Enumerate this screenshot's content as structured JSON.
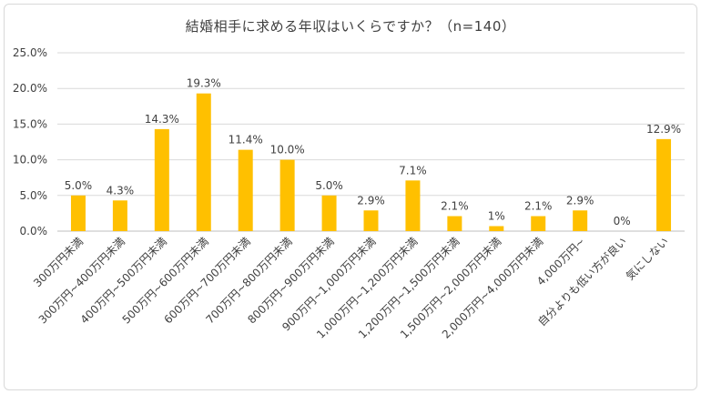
{
  "chart_data": {
    "type": "bar",
    "title": "結婚相手に求める年収はいくらですか？（n=140）",
    "categories": [
      "300万円未満",
      "300万円~400万円未満",
      "400万円~500万円未満",
      "500万円~600万円未満",
      "600万円~700万円未満",
      "700万円~800万円未満",
      "800万円~900万円未満",
      "900万円~1,000万円未満",
      "1,000万円~1,200万円未満",
      "1,200万円~1,500万円未満",
      "1,500万円~2,000万円未満",
      "2,000万円~4,000万円未満",
      "4,000万円~",
      "自分よりも低い方が良い",
      "気にしない"
    ],
    "values": [
      5.0,
      4.3,
      14.3,
      19.3,
      11.4,
      10.0,
      5.0,
      2.9,
      7.1,
      2.1,
      0.7,
      2.1,
      2.9,
      0,
      12.9
    ],
    "data_labels": [
      "5.0%",
      "4.3%",
      "14.3%",
      "19.3%",
      "11.4%",
      "10.0%",
      "5.0%",
      "2.9%",
      "7.1%",
      "2.1%",
      "1%",
      "2.1%",
      "2.9%",
      "0%",
      "12.9%"
    ],
    "yticks": [
      "0.0%",
      "5.0%",
      "10.0%",
      "15.0%",
      "20.0%",
      "25.0%"
    ],
    "ylim": [
      0,
      25
    ],
    "grid": true,
    "legend": "none",
    "bar_color": "#FFC000",
    "grid_color": "#d9d9d9",
    "text_color": "#404040"
  }
}
